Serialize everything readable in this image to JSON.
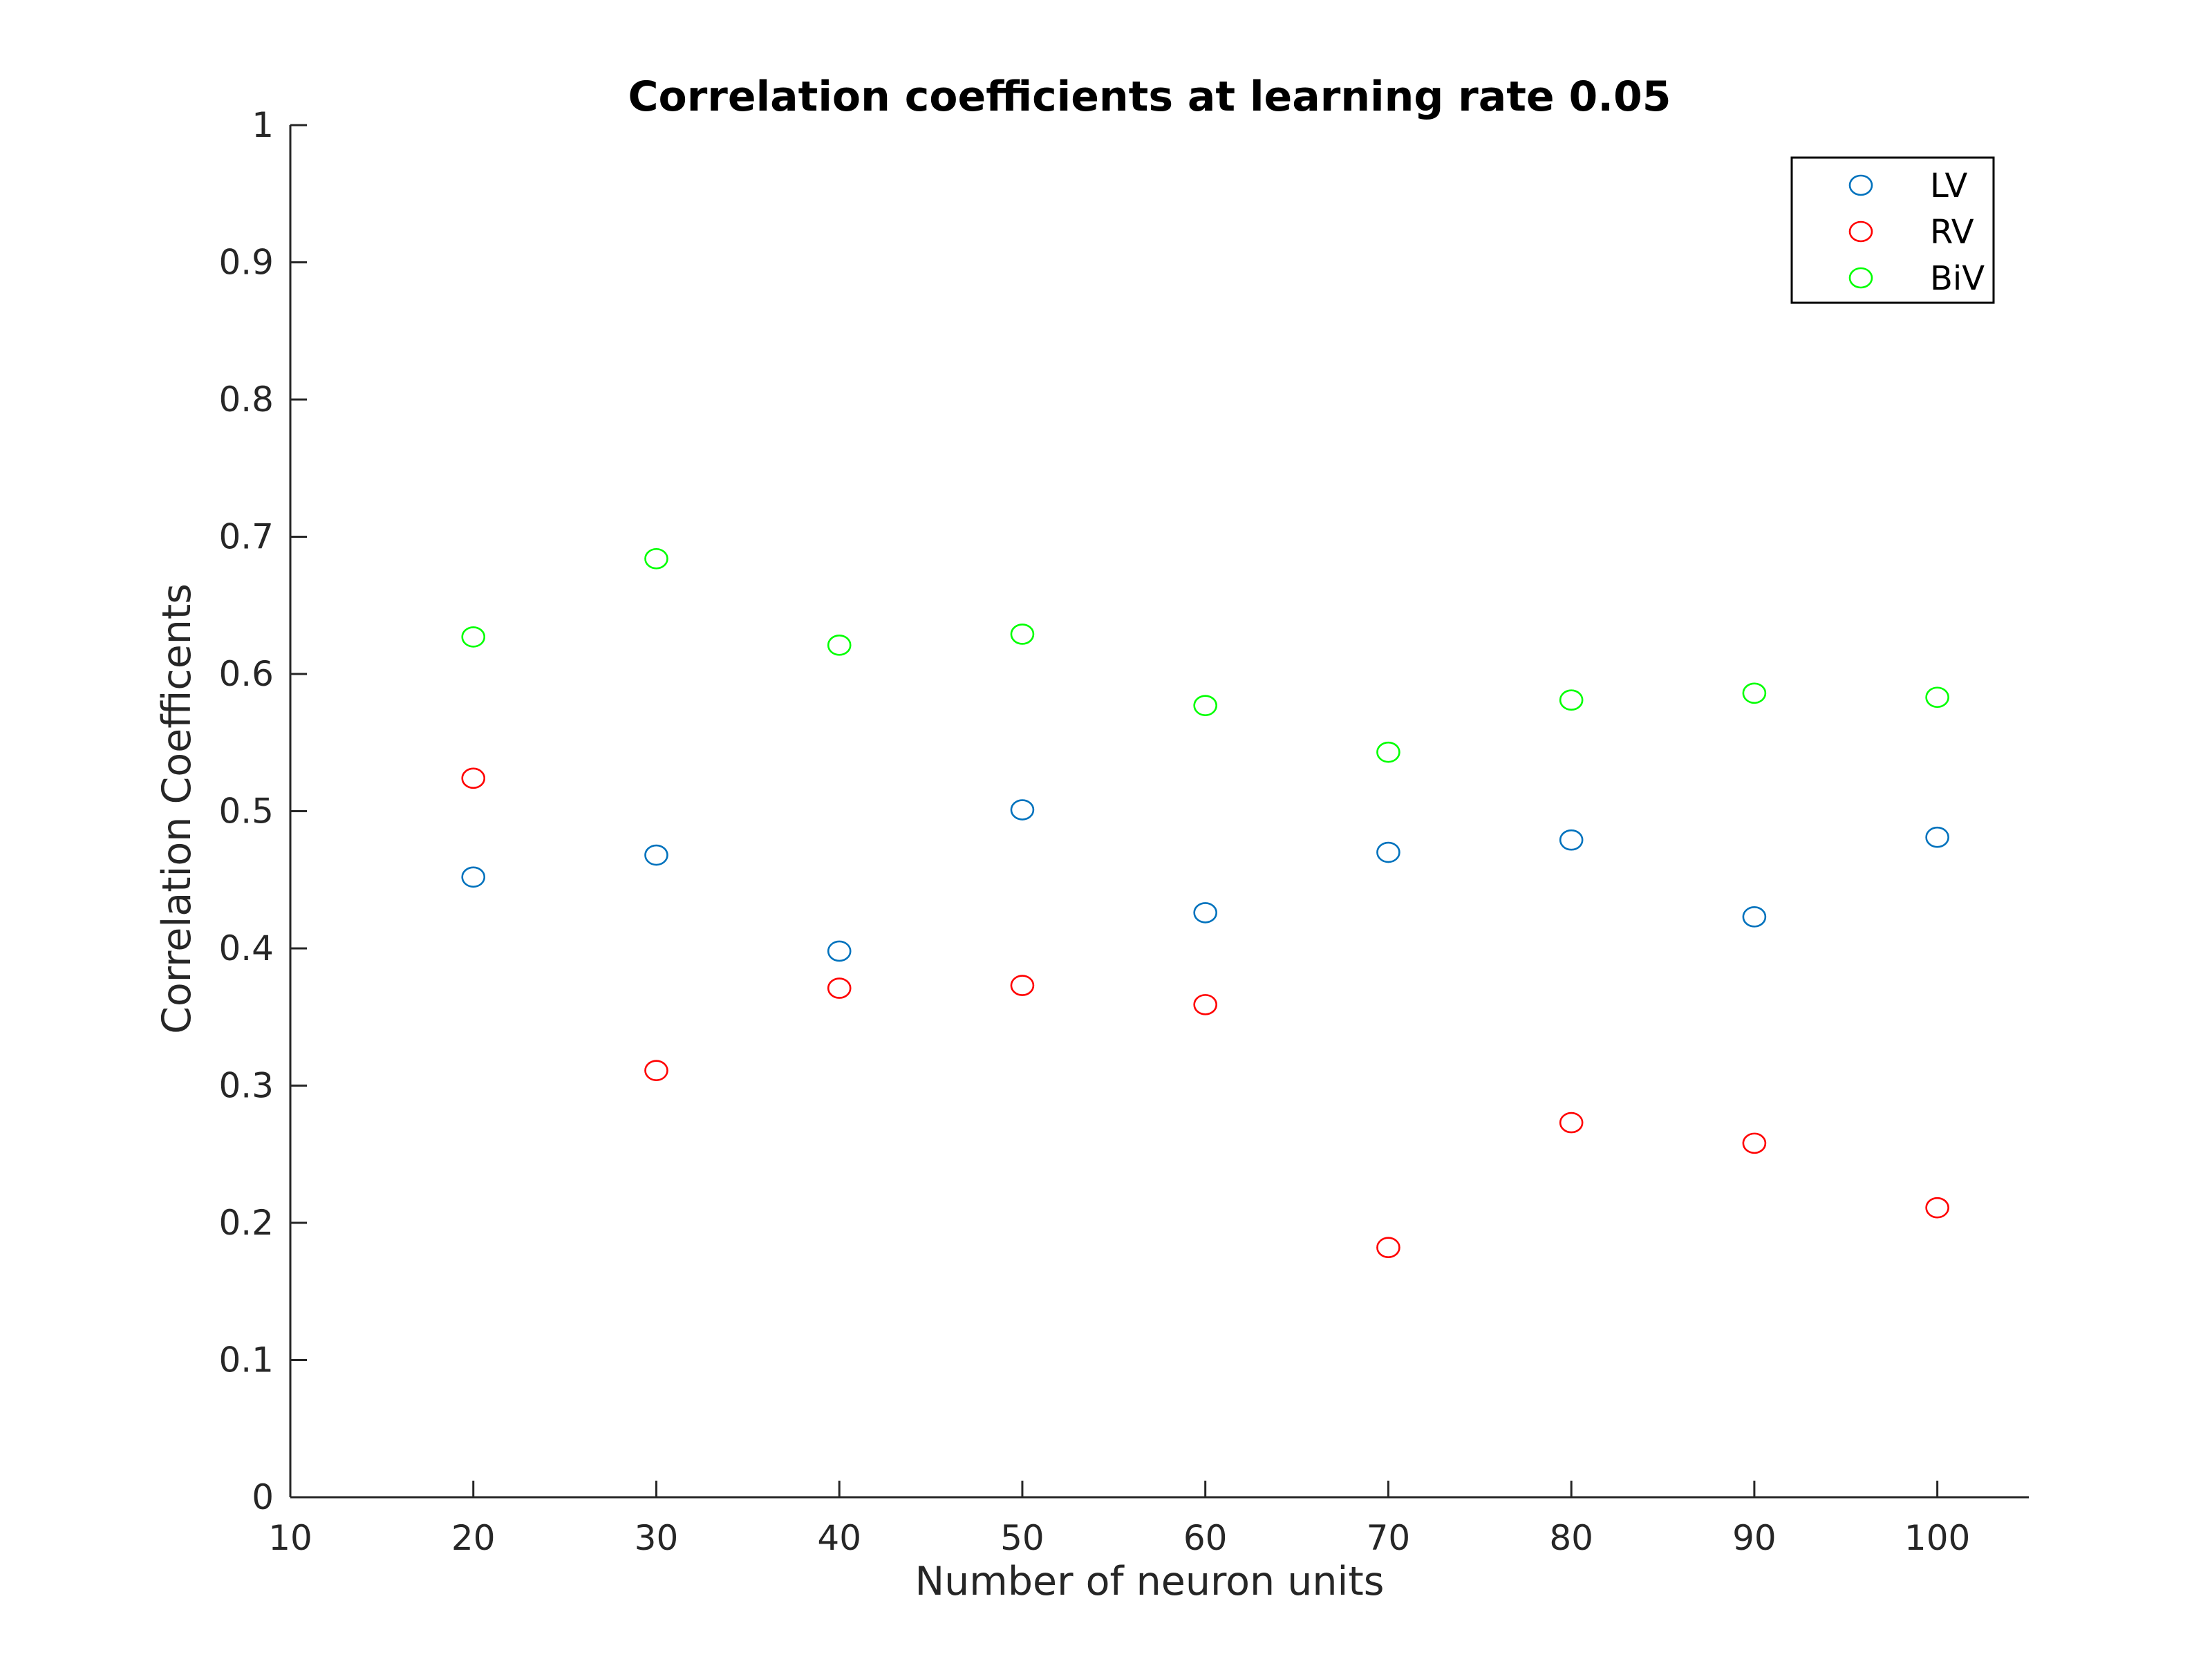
{
  "chart_data": {
    "type": "scatter",
    "title": "Correlation coefficients at learning rate 0.05",
    "xlabel": "Number of neuron units",
    "ylabel": "Correlation Coefficents",
    "xlim": [
      10,
      105
    ],
    "ylim": [
      0,
      1
    ],
    "xticks": [
      10,
      20,
      30,
      40,
      50,
      60,
      70,
      80,
      90,
      100
    ],
    "xtick_labels": [
      "10",
      "20",
      "30",
      "40",
      "50",
      "60",
      "70",
      "80",
      "90",
      "100"
    ],
    "yticks": [
      0,
      0.1,
      0.2,
      0.3,
      0.4,
      0.5,
      0.6,
      0.7,
      0.8,
      0.9,
      1
    ],
    "ytick_labels": [
      "0",
      "0.1",
      "0.2",
      "0.3",
      "0.4",
      "0.5",
      "0.6",
      "0.7",
      "0.8",
      "0.9",
      "1"
    ],
    "grid": false,
    "legend_position": "top-right",
    "x": [
      20,
      30,
      40,
      50,
      60,
      70,
      80,
      90,
      100
    ],
    "series": [
      {
        "name": "LV",
        "color": "#0072bd",
        "marker": "circle-open",
        "values": [
          0.452,
          0.468,
          0.398,
          0.501,
          0.426,
          0.47,
          0.479,
          0.423,
          0.481
        ]
      },
      {
        "name": "RV",
        "color": "#ff0000",
        "marker": "circle-open",
        "values": [
          0.524,
          0.311,
          0.371,
          0.373,
          0.359,
          0.182,
          0.273,
          0.258,
          0.211
        ]
      },
      {
        "name": "BiV",
        "color": "#00ff00",
        "marker": "circle-open",
        "values": [
          0.627,
          0.684,
          0.621,
          0.629,
          0.577,
          0.543,
          0.581,
          0.586,
          0.583
        ]
      }
    ]
  }
}
